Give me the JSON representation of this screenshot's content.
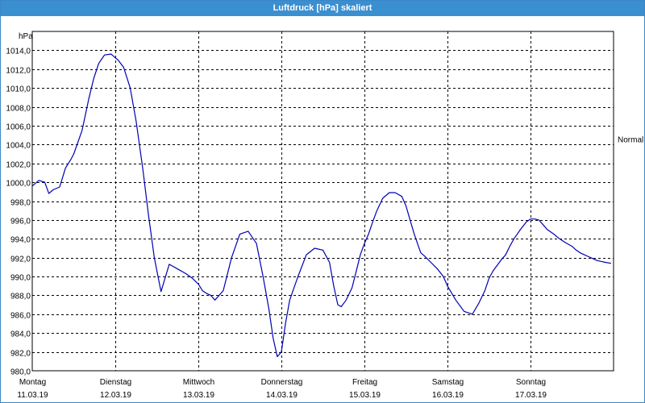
{
  "window": {
    "title": "Luftdruck [hPa] skaliert"
  },
  "chart_data": {
    "type": "line",
    "title": "Luftdruck [hPa] skaliert",
    "ylabel": "hPa",
    "ylim": [
      980,
      1016
    ],
    "yticks": [
      980,
      982,
      984,
      986,
      988,
      990,
      992,
      994,
      996,
      998,
      1000,
      1002,
      1004,
      1006,
      1008,
      1010,
      1012,
      1014
    ],
    "ytick_labels": [
      "980,0",
      "982,0",
      "984,0",
      "986,0",
      "988,0",
      "990,0",
      "992,0",
      "994,0",
      "996,0",
      "998,0",
      "1000,0",
      "1002,0",
      "1004,0",
      "1006,0",
      "1008,0",
      "1010,0",
      "1012,0",
      "1014,0"
    ],
    "xlim": [
      0,
      7
    ],
    "x_categories": [
      {
        "day": "Montag",
        "date": "11.03.19"
      },
      {
        "day": "Dienstag",
        "date": "12.03.19"
      },
      {
        "day": "Mittwoch",
        "date": "13.03.19"
      },
      {
        "day": "Donnerstag",
        "date": "14.03.19"
      },
      {
        "day": "Freitag",
        "date": "15.03.19"
      },
      {
        "day": "Samstag",
        "date": "16.03.19"
      },
      {
        "day": "Sonntag",
        "date": "17.03.19"
      }
    ],
    "annotations": [
      {
        "text": "Normal",
        "value": 1004.6
      }
    ],
    "grid": true,
    "series": [
      {
        "color": "#0000b4",
        "x": [
          0,
          0.08,
          0.15,
          0.2,
          0.25,
          0.33,
          0.4,
          0.47,
          0.5,
          0.6,
          0.68,
          0.74,
          0.8,
          0.87,
          0.95,
          1.0,
          1.03,
          1.1,
          1.18,
          1.25,
          1.33,
          1.4,
          1.47,
          1.55,
          1.65,
          1.75,
          1.85,
          1.93,
          2.0,
          2.05,
          2.1,
          2.15,
          2.2,
          2.3,
          2.4,
          2.5,
          2.6,
          2.7,
          2.78,
          2.85,
          2.9,
          2.95,
          3.0,
          3.05,
          3.1,
          3.2,
          3.3,
          3.4,
          3.5,
          3.58,
          3.63,
          3.68,
          3.72,
          3.78,
          3.85,
          3.9,
          3.95,
          4.0,
          4.05,
          4.1,
          4.15,
          4.22,
          4.3,
          4.37,
          4.45,
          4.5,
          4.55,
          4.6,
          4.65,
          4.68,
          4.72,
          4.8,
          4.88,
          4.95,
          5.0,
          5.1,
          5.2,
          5.3,
          5.38,
          5.45,
          5.5,
          5.55,
          5.6,
          5.65,
          5.7,
          5.75,
          5.8,
          5.88,
          5.95,
          6.0,
          6.05,
          6.1,
          6.15,
          6.2,
          6.28,
          6.35,
          6.42,
          6.5,
          6.55,
          6.6,
          6.65,
          6.7,
          6.75,
          6.8,
          6.85,
          6.9,
          6.97
        ],
        "y": [
          999.6,
          1000.2,
          1000.0,
          998.8,
          999.2,
          999.5,
          1001.5,
          1002.5,
          1003.0,
          1005.5,
          1008.8,
          1011.0,
          1012.6,
          1013.5,
          1013.6,
          1013.2,
          1013.0,
          1012.2,
          1010.0,
          1006.5,
          1001.5,
          996.5,
          992.0,
          988.4,
          991.3,
          990.8,
          990.3,
          989.8,
          989.2,
          988.5,
          988.2,
          988.0,
          987.5,
          988.5,
          992.0,
          994.5,
          994.8,
          993.5,
          990.0,
          986.5,
          983.5,
          981.5,
          982.0,
          985.0,
          987.5,
          990.0,
          992.3,
          993.0,
          992.8,
          991.5,
          989.0,
          987.0,
          986.8,
          987.5,
          988.8,
          990.5,
          992.3,
          993.5,
          994.5,
          995.8,
          997.0,
          998.3,
          998.9,
          998.9,
          998.5,
          997.5,
          996.0,
          994.5,
          993.2,
          992.5,
          992.2,
          991.5,
          990.8,
          990.0,
          989.0,
          987.5,
          986.3,
          986.0,
          987.2,
          988.5,
          989.8,
          990.6,
          991.2,
          991.8,
          992.3,
          993.2,
          994.0,
          995.0,
          995.8,
          996.1,
          996.1,
          996.0,
          995.5,
          995.0,
          994.5,
          994.0,
          993.6,
          993.2,
          992.8,
          992.5,
          992.3,
          992.1,
          991.9,
          991.7,
          991.6,
          991.5,
          991.4
        ]
      }
    ]
  }
}
